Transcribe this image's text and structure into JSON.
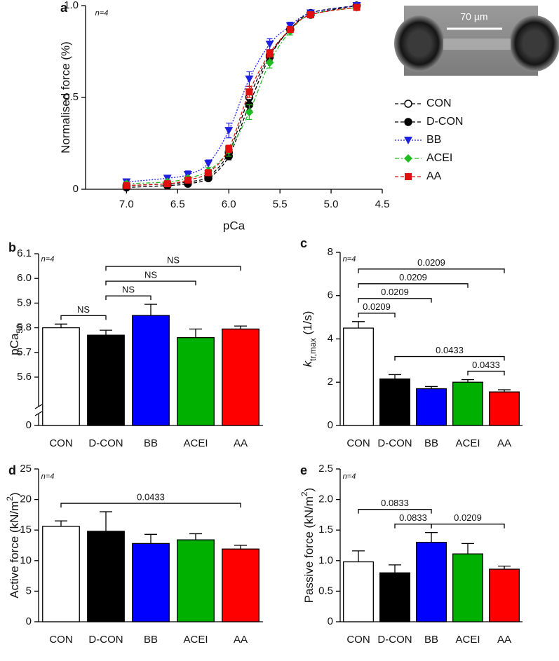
{
  "chart_data": [
    {
      "type": "line",
      "panel_label": "a",
      "annotation": "n=4",
      "inset_label": "70 µm",
      "xlabel": "pCa",
      "ylabel": [
        {
          "text": "Normalised force (%)"
        }
      ],
      "x": [
        7.0,
        6.6,
        6.4,
        6.2,
        6.0,
        5.8,
        5.6,
        5.4,
        5.2,
        4.75
      ],
      "xlim": [
        7.4,
        4.5
      ],
      "xticks": [
        {
          "value": 7,
          "label": "7.0"
        },
        6.5,
        {
          "value": 6,
          "label": "6.0"
        },
        5.5,
        {
          "value": 5,
          "label": "5.0"
        },
        4.5
      ],
      "ylim": [
        0,
        1
      ],
      "yticks": [
        0,
        0.5,
        {
          "value": 1,
          "label": "1.0"
        }
      ],
      "series": [
        {
          "name": "CON",
          "color": "#000000",
          "marker": "circle-open",
          "linestyle": "dashed",
          "values": [
            0.02,
            0.03,
            0.04,
            0.07,
            0.2,
            0.5,
            0.73,
            0.87,
            0.96,
            1.0
          ],
          "errors": [
            0.01,
            0.01,
            0.01,
            0.01,
            0.02,
            0.03,
            0.02,
            0.01,
            0.01,
            0.01
          ]
        },
        {
          "name": "D-CON",
          "color": "#000000",
          "marker": "circle",
          "linestyle": "dashed",
          "values": [
            0.01,
            0.02,
            0.03,
            0.06,
            0.18,
            0.46,
            0.72,
            0.87,
            0.95,
            1.0
          ],
          "errors": [
            0.01,
            0.01,
            0.01,
            0.01,
            0.02,
            0.03,
            0.02,
            0.01,
            0.01,
            0.01
          ]
        },
        {
          "name": "BB",
          "color": "#1f1fe0",
          "marker": "triangle-down",
          "linestyle": "dotted",
          "values": [
            0.04,
            0.06,
            0.08,
            0.14,
            0.32,
            0.6,
            0.79,
            0.89,
            0.96,
            1.0
          ],
          "errors": [
            0.01,
            0.01,
            0.02,
            0.02,
            0.04,
            0.04,
            0.03,
            0.02,
            0.01,
            0.01
          ]
        },
        {
          "name": "ACEI",
          "color": "#22bb22",
          "marker": "diamond",
          "linestyle": "dashdot",
          "values": [
            0.03,
            0.04,
            0.06,
            0.1,
            0.21,
            0.42,
            0.69,
            0.86,
            0.95,
            0.99
          ],
          "errors": [
            0.01,
            0.01,
            0.01,
            0.02,
            0.03,
            0.04,
            0.03,
            0.02,
            0.01,
            0.01
          ]
        },
        {
          "name": "AA",
          "color": "#e01010",
          "marker": "square",
          "linestyle": "dashed",
          "values": [
            0.02,
            0.03,
            0.05,
            0.09,
            0.22,
            0.53,
            0.74,
            0.87,
            0.95,
            0.99
          ],
          "errors": [
            0.01,
            0.01,
            0.01,
            0.01,
            0.02,
            0.03,
            0.02,
            0.01,
            0.01,
            0.01
          ]
        }
      ]
    },
    {
      "type": "bar",
      "panel_label": "b",
      "annotation": "n=4",
      "ylabel": [
        {
          "text": "pCa"
        },
        {
          "text": "50",
          "style": "sub"
        }
      ],
      "categories": [
        "CON",
        "D-CON",
        "BB",
        "ACEI",
        "AA"
      ],
      "values": [
        5.8,
        5.77,
        5.85,
        5.76,
        5.795
      ],
      "errors": [
        0.015,
        0.02,
        0.045,
        0.035,
        0.012
      ],
      "colors": [
        "#ffffff",
        "#000000",
        "#0000ff",
        "#00b000",
        "#ff0000"
      ],
      "ylim": [
        0,
        6.1
      ],
      "ybreak": [
        0,
        5.6
      ],
      "yticks": [
        0,
        5.6,
        5.7,
        5.8,
        5.9,
        {
          "value": 6,
          "label": "6.0"
        },
        6.1
      ],
      "brackets": [
        {
          "from": "CON",
          "to": "D-CON",
          "label": "NS"
        },
        {
          "from": "D-CON",
          "to": "BB",
          "label": "NS"
        },
        {
          "from": "D-CON",
          "to": "ACEI",
          "label": "NS"
        },
        {
          "from": "D-CON",
          "to": "AA",
          "label": "NS"
        }
      ]
    },
    {
      "type": "bar",
      "panel_label": "c",
      "annotation": "n=4",
      "ylabel": [
        {
          "text": "k",
          "style": "italic"
        },
        {
          "text": "tr,max",
          "style": "sub"
        },
        {
          "text": " (1/s)"
        }
      ],
      "categories": [
        "CON",
        "D-CON",
        "BB",
        "ACEI",
        "AA"
      ],
      "values": [
        4.5,
        2.15,
        1.7,
        2.0,
        1.55
      ],
      "errors": [
        0.3,
        0.2,
        0.1,
        0.12,
        0.1
      ],
      "colors": [
        "#ffffff",
        "#000000",
        "#0000ff",
        "#00b000",
        "#ff0000"
      ],
      "ylim": [
        0,
        8
      ],
      "yticks": [
        0,
        2,
        4,
        6,
        8
      ],
      "brackets": [
        {
          "from": "CON",
          "to": "D-CON",
          "label": "0.0209"
        },
        {
          "from": "ACEI",
          "to": "AA",
          "label": "0.0433"
        },
        {
          "from": "D-CON",
          "to": "AA",
          "label": "0.0433"
        },
        {
          "from": "CON",
          "to": "BB",
          "label": "0.0209"
        },
        {
          "from": "CON",
          "to": "ACEI",
          "label": "0.0209"
        },
        {
          "from": "CON",
          "to": "AA",
          "label": "0.0209"
        }
      ]
    },
    {
      "type": "bar",
      "panel_label": "d",
      "annotation": "n=4",
      "ylabel": [
        {
          "text": "Active force (kN/m"
        },
        {
          "text": "2",
          "style": "sup"
        },
        {
          "text": ")"
        }
      ],
      "categories": [
        "CON",
        "D-CON",
        "BB",
        "ACEI",
        "AA"
      ],
      "values": [
        15.6,
        14.8,
        12.8,
        13.4,
        11.9
      ],
      "errors": [
        0.9,
        3.2,
        1.5,
        1.0,
        0.6
      ],
      "colors": [
        "#ffffff",
        "#000000",
        "#0000ff",
        "#00b000",
        "#ff0000"
      ],
      "ylim": [
        0,
        25
      ],
      "yticks": [
        0,
        5,
        10,
        15,
        20,
        25
      ],
      "brackets": [
        {
          "from": "CON",
          "to": "AA",
          "label": "0.0433"
        }
      ]
    },
    {
      "type": "bar",
      "panel_label": "e",
      "annotation": "n=4",
      "ylabel": [
        {
          "text": "Passive force (kN/m"
        },
        {
          "text": "2",
          "style": "sup"
        },
        {
          "text": ")"
        }
      ],
      "categories": [
        "CON",
        "D-CON",
        "BB",
        "ACEI",
        "AA"
      ],
      "values": [
        0.98,
        0.8,
        1.3,
        1.11,
        0.86
      ],
      "errors": [
        0.18,
        0.13,
        0.16,
        0.17,
        0.05
      ],
      "colors": [
        "#ffffff",
        "#000000",
        "#0000ff",
        "#00b000",
        "#ff0000"
      ],
      "ylim": [
        0,
        2.5
      ],
      "yticks": [
        0,
        0.5,
        {
          "value": 1,
          "label": "1.0"
        },
        1.5,
        {
          "value": 2,
          "label": "2.0"
        },
        2.5
      ],
      "brackets": [
        {
          "from": "D-CON",
          "to": "BB",
          "label": "0.0833"
        },
        {
          "from": "BB",
          "to": "AA",
          "label": "0.0209"
        },
        {
          "from": "CON",
          "to": "BB",
          "label": "0.0833"
        }
      ]
    }
  ]
}
